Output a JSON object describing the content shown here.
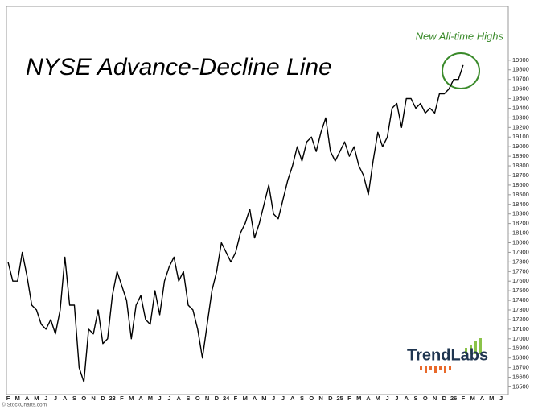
{
  "chart_data": {
    "type": "line",
    "title": "NYSE Advance-Decline Line",
    "annotation": "New All-time Highs",
    "logo": "TrendLabs",
    "credit": "© StockCharts.com",
    "categories": [
      "F",
      null,
      "M",
      null,
      "A",
      null,
      "M",
      null,
      "J",
      null,
      "J",
      null,
      "A",
      null,
      "S",
      null,
      "O",
      null,
      "N",
      null,
      "D",
      null,
      "23",
      null,
      "F",
      null,
      "M",
      null,
      "A",
      null,
      "M",
      null,
      "J",
      null,
      "J",
      null,
      "A",
      null,
      "S",
      null,
      "O",
      null,
      "N",
      null,
      "D",
      null,
      "24",
      null,
      "F",
      null,
      "M",
      null,
      "A",
      null,
      "M",
      null,
      "J",
      null,
      "J",
      null,
      "A",
      null,
      "S",
      null,
      "O",
      null,
      "N",
      null,
      "D",
      null,
      "25",
      null,
      "F",
      null,
      "M",
      null,
      "A",
      null,
      "M",
      null,
      "J",
      null,
      "J",
      null,
      "A",
      null,
      "S",
      null,
      "O",
      null,
      "N",
      null,
      "D",
      null,
      "26",
      null,
      "F",
      null,
      "M",
      null,
      "A",
      null,
      "M",
      null,
      "J",
      null
    ],
    "series": [
      {
        "color": "#000000",
        "values": [
          17800,
          17600,
          17600,
          17900,
          17650,
          17350,
          17300,
          17150,
          17100,
          17200,
          17050,
          17300,
          17850,
          17350,
          17350,
          16700,
          16550,
          17100,
          17050,
          17300,
          16950,
          17000,
          17450,
          17700,
          17550,
          17400,
          17000,
          17350,
          17450,
          17200,
          17150,
          17500,
          17250,
          17600,
          17750,
          17850,
          17600,
          17700,
          17350,
          17300,
          17100,
          16800,
          17150,
          17500,
          17700,
          18000,
          17900,
          17800,
          17900,
          18100,
          18200,
          18350,
          18050,
          18200,
          18400,
          18600,
          18300,
          18250,
          18450,
          18650,
          18800,
          19000,
          18850,
          19050,
          19100,
          18950,
          19150,
          19300,
          18950,
          18850,
          18950,
          19050,
          18900,
          19000,
          18800,
          18700,
          18500,
          18850,
          19150,
          19000,
          19100,
          19400,
          19450,
          19200,
          19500,
          19500,
          19400,
          19450,
          19350,
          19400,
          19350,
          19550,
          19550,
          19600,
          19700,
          19700,
          19850,
          null,
          null,
          null,
          null,
          null,
          null,
          null,
          null,
          null
        ]
      }
    ],
    "ylim": [
      16420,
      20460
    ],
    "yticks": [
      16500,
      16600,
      16700,
      16800,
      16900,
      17000,
      17100,
      17200,
      17300,
      17400,
      17500,
      17600,
      17700,
      17800,
      17900,
      18000,
      18100,
      18200,
      18300,
      18400,
      18500,
      18600,
      18700,
      18800,
      18900,
      19000,
      19100,
      19200,
      19300,
      19400,
      19500,
      19600,
      19700,
      19800,
      19900
    ],
    "annotation_color": "#3a8a2a"
  }
}
